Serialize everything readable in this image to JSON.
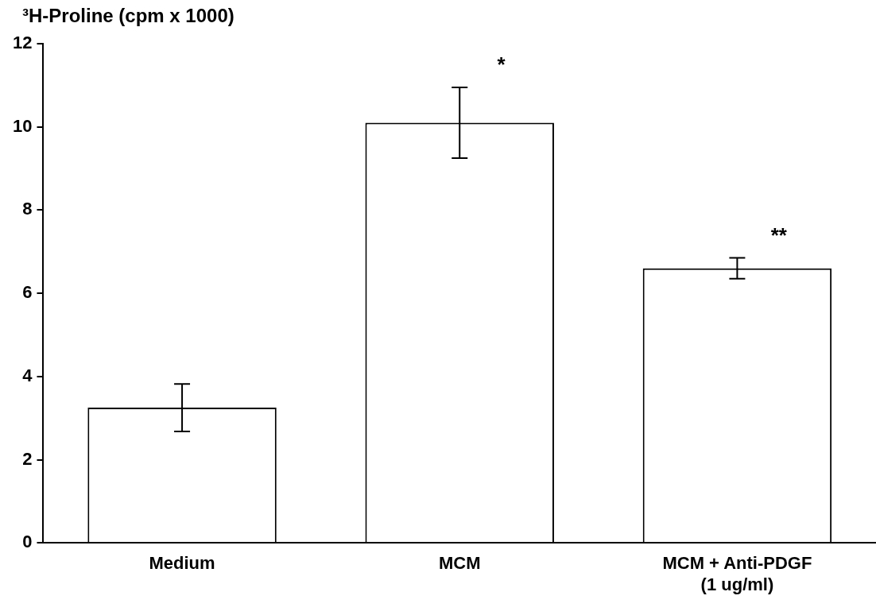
{
  "chart_data": {
    "type": "bar",
    "ylabel": "³H-Proline (cpm x 1000)",
    "categories": [
      "Medium",
      "MCM",
      "MCM + Anti-PDGF\n(1 ug/ml)"
    ],
    "values": [
      3.25,
      10.1,
      6.6
    ],
    "errors": [
      0.57,
      0.85,
      0.25
    ],
    "color": "#ffffff",
    "ylim": [
      0,
      12
    ],
    "yticks": [
      0,
      2,
      4,
      6,
      8,
      10,
      12
    ],
    "grid": false,
    "legend": false,
    "annotations": [
      {
        "text": "*",
        "x": "MCM",
        "y": 10.95
      },
      {
        "text": "**",
        "x": "MCM + Anti-PDGF\n(1 ug/ml)",
        "y": 6.85
      }
    ]
  }
}
